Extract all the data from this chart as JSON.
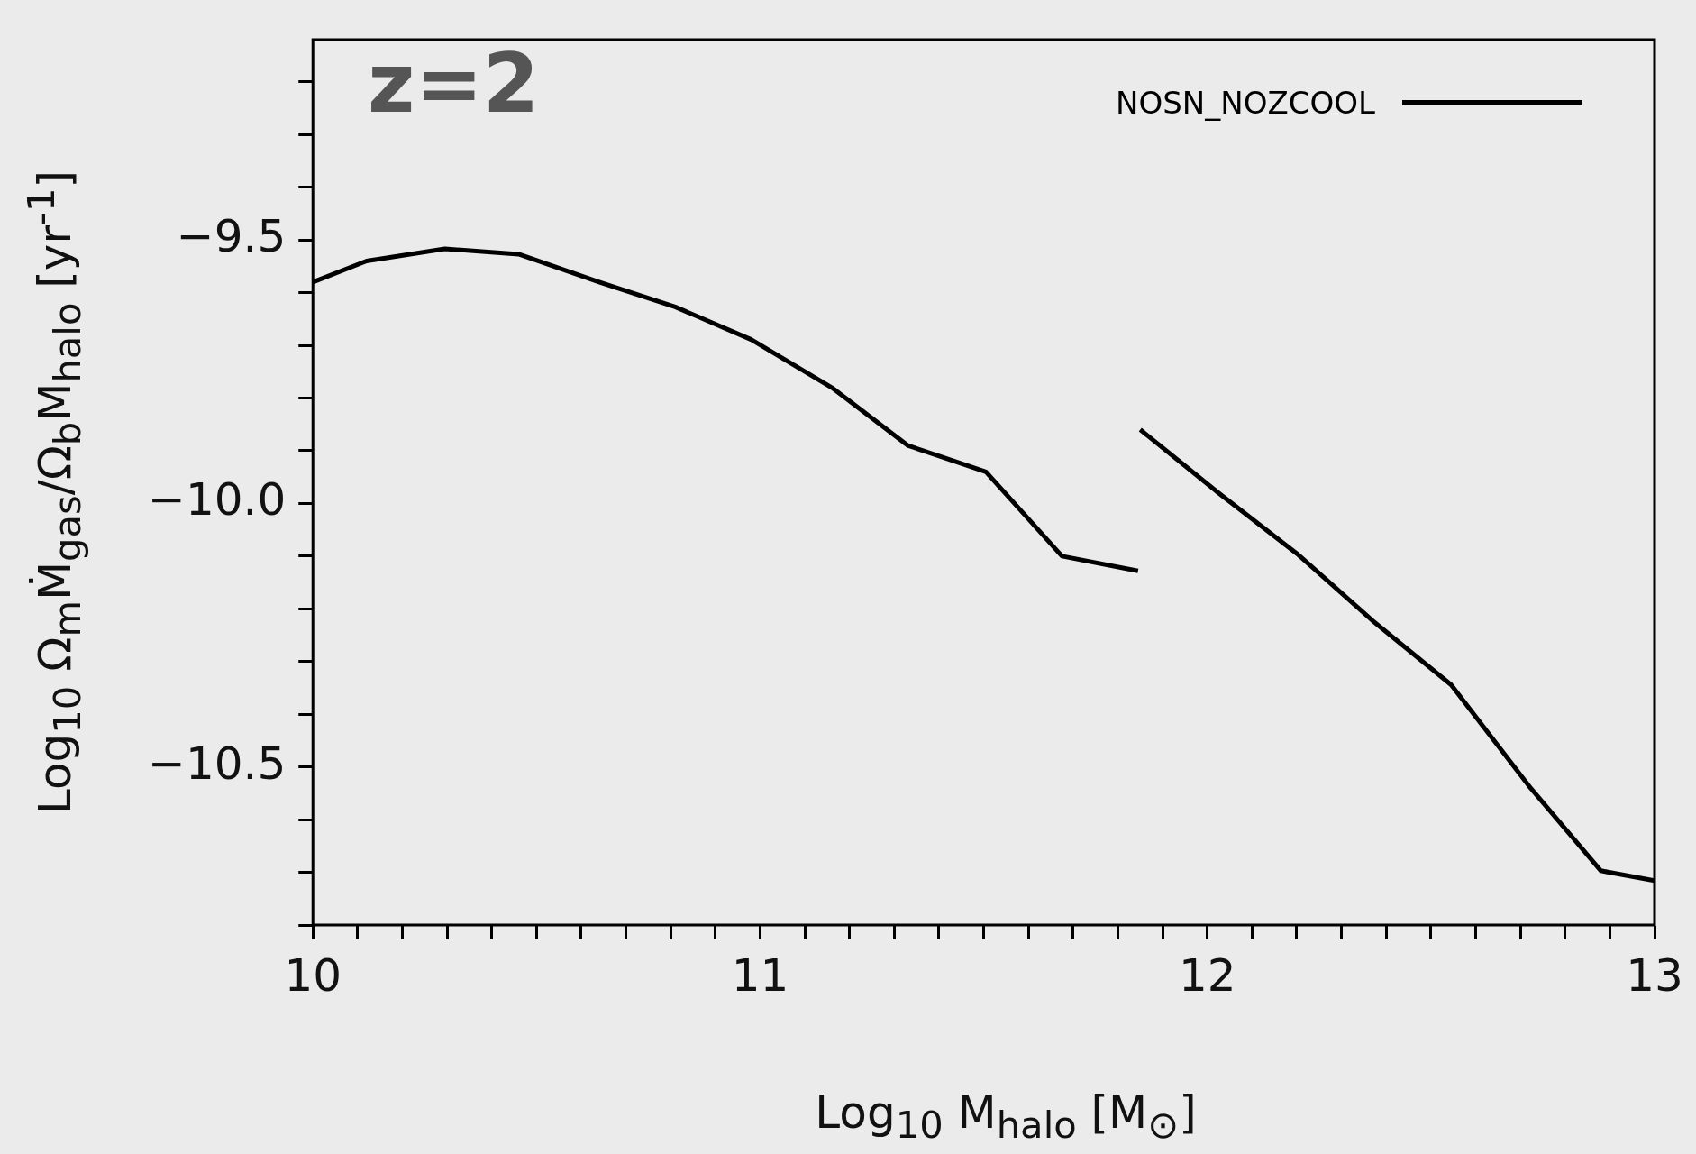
{
  "chart_data": {
    "type": "line",
    "xlabel": "Log$_{10}$ M$_{halo}$ [M$_{⊙}$]",
    "ylabel": "Log$_{10}$ Ω$_{m}$Ṁ$_{gas}$/Ω$_{b}$M$_{halo}$ [yr$^{-1}$]",
    "annotations": [
      "z=2"
    ],
    "xlim": [
      10,
      13
    ],
    "xticks": [
      10,
      {
        "value": 10.1,
        "label": null
      },
      {
        "value": 10.2,
        "label": null
      },
      {
        "value": 10.3,
        "label": null
      },
      {
        "value": 10.4,
        "label": null
      },
      {
        "value": 10.5,
        "label": null
      },
      {
        "value": 10.6,
        "label": null
      },
      {
        "value": 10.7,
        "label": null
      },
      {
        "value": 10.8,
        "label": null
      },
      {
        "value": 10.9,
        "label": null
      },
      11,
      {
        "value": 11.1,
        "label": null
      },
      {
        "value": 11.2,
        "label": null
      },
      {
        "value": 11.3,
        "label": null
      },
      {
        "value": 11.4,
        "label": null
      },
      {
        "value": 11.5,
        "label": null
      },
      {
        "value": 11.6,
        "label": null
      },
      {
        "value": 11.7,
        "label": null
      },
      {
        "value": 11.8,
        "label": null
      },
      {
        "value": 11.9,
        "label": null
      },
      12,
      {
        "value": 12.1,
        "label": null
      },
      {
        "value": 12.2,
        "label": null
      },
      {
        "value": 12.3,
        "label": null
      },
      {
        "value": 12.4,
        "label": null
      },
      {
        "value": 12.5,
        "label": null
      },
      {
        "value": 12.6,
        "label": null
      },
      {
        "value": 12.7,
        "label": null
      },
      {
        "value": 12.8,
        "label": null
      },
      {
        "value": 12.9,
        "label": null
      },
      13
    ],
    "ylim": [
      -10.8,
      -9.12
    ],
    "yticks": [
      {
        "value": -10.8,
        "label": null
      },
      {
        "value": -10.7,
        "label": null
      },
      {
        "value": -10.6,
        "label": null
      },
      {
        "value": -10.5,
        "label": "−10.5"
      },
      {
        "value": -10.4,
        "label": null
      },
      {
        "value": -10.3,
        "label": null
      },
      {
        "value": -10.2,
        "label": null
      },
      {
        "value": -10.1,
        "label": null
      },
      {
        "value": -10,
        "label": "−10.0"
      },
      {
        "value": -9.9,
        "label": null
      },
      {
        "value": -9.8,
        "label": null
      },
      {
        "value": -9.7,
        "label": null
      },
      {
        "value": -9.6,
        "label": null
      },
      {
        "value": -9.5,
        "label": "−9.5"
      },
      {
        "value": -9.4,
        "label": null
      },
      {
        "value": -9.3,
        "label": null
      },
      {
        "value": -9.2,
        "label": null
      }
    ],
    "legend": "top right",
    "grid": false,
    "marker": "none",
    "line_style": "solid",
    "series": [
      {
        "name": "NOSN_NOZCOOL",
        "color": "#000000",
        "x": [
          10.0,
          10.12,
          10.295,
          10.46,
          10.64,
          10.81,
          10.98,
          11.16,
          11.33,
          11.505,
          11.675,
          11.845
        ],
        "values": [
          -9.58,
          -9.54,
          -9.517,
          -9.527,
          -9.58,
          -9.627,
          -9.689,
          -9.78,
          -9.89,
          -9.94,
          -10.1,
          -10.128
        ]
      },
      {
        "color": "#000000",
        "x": [
          11.85,
          12.025,
          12.2,
          12.37,
          12.545,
          12.72,
          12.88,
          13.0
        ],
        "values": [
          -9.86,
          -9.98,
          -10.095,
          -10.223,
          -10.344,
          -10.537,
          -10.697,
          -10.716
        ]
      }
    ]
  }
}
